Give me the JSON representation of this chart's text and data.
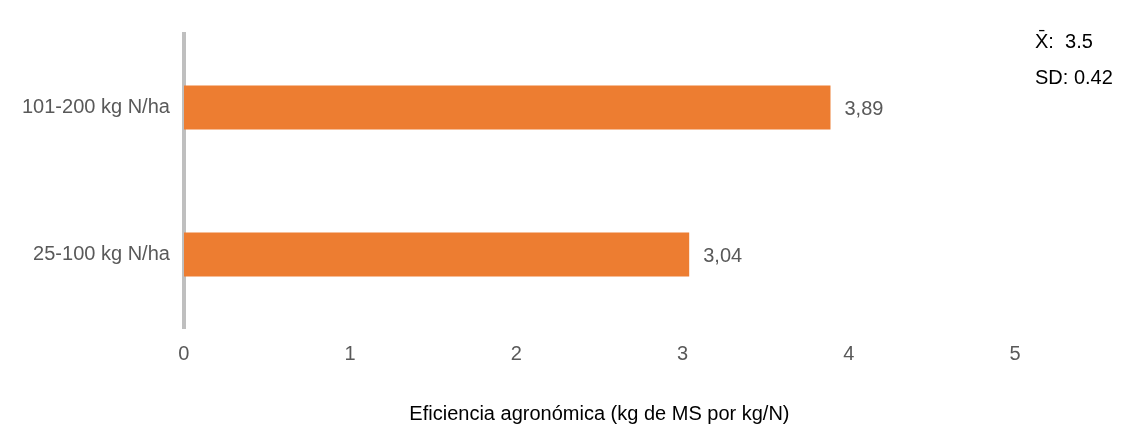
{
  "chart_data": {
    "type": "bar",
    "orientation": "horizontal",
    "categories": [
      "101-200 kg N/ha",
      "25-100 kg N/ha"
    ],
    "values": [
      3.89,
      3.04
    ],
    "value_labels": [
      "3,89",
      "3,04"
    ],
    "color": "#ed7d31",
    "xlim": [
      0,
      5
    ],
    "xticks": [
      0,
      1,
      2,
      3,
      4,
      5
    ],
    "xlabel": "Eficiencia agronómica (kg de MS por kg/N)",
    "annotations": [
      "X̄:  3.5",
      "SD: 0.42"
    ],
    "grid": false,
    "legend": false
  }
}
